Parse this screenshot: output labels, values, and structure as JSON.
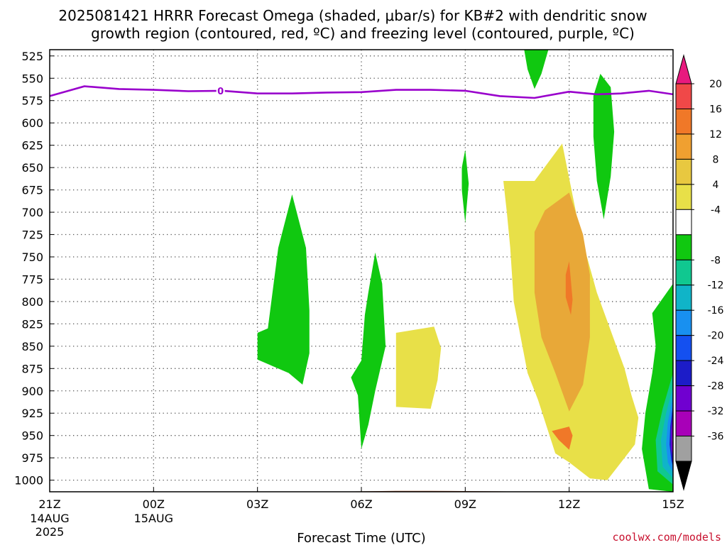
{
  "chart_data": {
    "type": "contour",
    "title_line1": "2025081421 HRRR Forecast Omega (shaded, μbar/s) for KB#2 with dendritic snow",
    "title_line2": "growth region (contoured, red, ºC) and freezing level (contoured, purple, ºC)",
    "xlabel": "Forecast Time (UTC)",
    "credit": "coolwx.com/models",
    "x_ticks": [
      {
        "label": "21Z",
        "sub1": "14AUG",
        "sub2": "2025",
        "hour": 0
      },
      {
        "label": "00Z",
        "sub1": "15AUG",
        "sub2": "",
        "hour": 3
      },
      {
        "label": "03Z",
        "sub1": "",
        "sub2": "",
        "hour": 6
      },
      {
        "label": "06Z",
        "sub1": "",
        "sub2": "",
        "hour": 9
      },
      {
        "label": "09Z",
        "sub1": "",
        "sub2": "",
        "hour": 12
      },
      {
        "label": "12Z",
        "sub1": "",
        "sub2": "",
        "hour": 15
      },
      {
        "label": "15Z",
        "sub1": "",
        "sub2": "",
        "hour": 18
      }
    ],
    "xlim_hours": [
      0,
      18
    ],
    "y_ticks": [
      525,
      550,
      575,
      600,
      625,
      650,
      675,
      700,
      725,
      750,
      775,
      800,
      825,
      850,
      875,
      900,
      925,
      950,
      975,
      1000
    ],
    "ylim_hpa": [
      518,
      1013
    ],
    "grid": true,
    "colorbar": {
      "labels": [
        "20",
        "16",
        "12",
        "8",
        "4",
        "-4",
        "-8",
        "-12",
        "-16",
        "-20",
        "-24",
        "-28",
        "-32",
        "-36"
      ],
      "bins": [
        {
          "color": "#e8197e"
        },
        {
          "color": "#f04848"
        },
        {
          "color": "#f07828"
        },
        {
          "color": "#f0a030"
        },
        {
          "color": "#e8c840"
        },
        {
          "color": "#e8e048"
        },
        {
          "color": "#ffffff"
        },
        {
          "color": "#10c810"
        },
        {
          "color": "#10c890"
        },
        {
          "color": "#10b4c8"
        },
        {
          "color": "#1890f0"
        },
        {
          "color": "#1450f0"
        },
        {
          "color": "#1c1cc8"
        },
        {
          "color": "#7000d0"
        },
        {
          "color": "#a800b8"
        },
        {
          "color": "#a0a0a0"
        },
        {
          "color": "#000000"
        }
      ]
    },
    "freezing_level": {
      "color": "#9900cc",
      "label": "0",
      "label_at": {
        "hour": 6,
        "hpa": 564
      },
      "points": [
        [
          0,
          570
        ],
        [
          1,
          559
        ],
        [
          2,
          562
        ],
        [
          3,
          563
        ],
        [
          4,
          564.5
        ],
        [
          5,
          564
        ],
        [
          6,
          567
        ],
        [
          7,
          567
        ],
        [
          8,
          566
        ],
        [
          9,
          565.5
        ],
        [
          10,
          563
        ],
        [
          11,
          563
        ],
        [
          12,
          564
        ],
        [
          13,
          570
        ],
        [
          14,
          572
        ],
        [
          15,
          565
        ],
        [
          15.8,
          568
        ],
        [
          16.5,
          567
        ],
        [
          17.3,
          564
        ],
        [
          18,
          568
        ]
      ]
    },
    "omega_regions": [
      {
        "level": "green",
        "points": [
          [
            13.7,
            518
          ],
          [
            14.4,
            518
          ],
          [
            14.2,
            545
          ],
          [
            14.0,
            562
          ],
          [
            13.8,
            540
          ]
        ]
      },
      {
        "level": "green",
        "points": [
          [
            15.7,
            570
          ],
          [
            15.9,
            545
          ],
          [
            16.2,
            560
          ],
          [
            16.3,
            610
          ],
          [
            16.2,
            660
          ],
          [
            16.0,
            708
          ],
          [
            15.8,
            665
          ],
          [
            15.7,
            615
          ]
        ]
      },
      {
        "level": "green",
        "points": [
          [
            11.9,
            650
          ],
          [
            12.0,
            630
          ],
          [
            12.1,
            668
          ],
          [
            12.0,
            712
          ],
          [
            11.9,
            675
          ]
        ]
      },
      {
        "level": "green",
        "points": [
          [
            6.0,
            835
          ],
          [
            6.3,
            830
          ],
          [
            6.6,
            740
          ],
          [
            7.0,
            680
          ],
          [
            7.4,
            740
          ],
          [
            7.5,
            810
          ],
          [
            7.5,
            858
          ],
          [
            7.3,
            893
          ],
          [
            6.9,
            880
          ],
          [
            6.0,
            865
          ]
        ]
      },
      {
        "level": "green",
        "points": [
          [
            9.0,
            866
          ],
          [
            9.1,
            815
          ],
          [
            9.2,
            790
          ],
          [
            9.4,
            745
          ],
          [
            9.6,
            780
          ],
          [
            9.7,
            850
          ],
          [
            9.4,
            900
          ],
          [
            9.2,
            938
          ],
          [
            9.0,
            965
          ],
          [
            8.9,
            905
          ],
          [
            8.7,
            885
          ]
        ]
      },
      {
        "level": "yellow",
        "points": [
          [
            10.0,
            835
          ],
          [
            11.1,
            828
          ],
          [
            11.3,
            852
          ],
          [
            11.2,
            888
          ],
          [
            11.0,
            920
          ],
          [
            10.0,
            918
          ]
        ]
      },
      {
        "level": "yellow",
        "points": [
          [
            13.1,
            665
          ],
          [
            14.0,
            665
          ],
          [
            14.8,
            623
          ],
          [
            15.3,
            720
          ],
          [
            15.8,
            790
          ],
          [
            16.6,
            875
          ],
          [
            16.8,
            905
          ],
          [
            17.0,
            930
          ],
          [
            16.9,
            960
          ],
          [
            16.4,
            985
          ],
          [
            16.1,
            1000
          ],
          [
            15.6,
            998
          ],
          [
            15.0,
            980
          ],
          [
            14.6,
            970
          ],
          [
            14.1,
            910
          ],
          [
            13.8,
            880
          ],
          [
            13.6,
            840
          ],
          [
            13.4,
            800
          ],
          [
            13.3,
            740
          ],
          [
            13.2,
            700
          ]
        ]
      },
      {
        "level": "orange",
        "points": [
          [
            14.0,
            722
          ],
          [
            14.3,
            698
          ],
          [
            15.0,
            678
          ],
          [
            15.4,
            725
          ],
          [
            15.6,
            770
          ],
          [
            15.6,
            840
          ],
          [
            15.4,
            893
          ],
          [
            15.0,
            923
          ],
          [
            14.6,
            880
          ],
          [
            14.2,
            840
          ],
          [
            14.0,
            790
          ]
        ]
      },
      {
        "level": "darkorange",
        "points": [
          [
            14.9,
            770
          ],
          [
            15.0,
            755
          ],
          [
            15.1,
            798
          ],
          [
            15.05,
            815
          ],
          [
            14.9,
            795
          ]
        ]
      },
      {
        "level": "darkorange",
        "points": [
          [
            14.5,
            945
          ],
          [
            15.0,
            940
          ],
          [
            15.1,
            950
          ],
          [
            15.0,
            966
          ],
          [
            14.7,
            955
          ]
        ]
      },
      {
        "level": "green",
        "points": [
          [
            18.0,
            780
          ],
          [
            17.4,
            813
          ],
          [
            17.5,
            850
          ],
          [
            17.4,
            880
          ],
          [
            17.2,
            925
          ],
          [
            17.1,
            965
          ],
          [
            17.3,
            1010
          ],
          [
            18.0,
            1013
          ]
        ]
      },
      {
        "level": "teal",
        "points": [
          [
            18.0,
            880
          ],
          [
            17.7,
            920
          ],
          [
            17.5,
            955
          ],
          [
            17.55,
            990
          ],
          [
            18.0,
            1005
          ]
        ]
      },
      {
        "level": "lightblue",
        "points": [
          [
            18.0,
            895
          ],
          [
            17.8,
            925
          ],
          [
            17.65,
            955
          ],
          [
            17.7,
            985
          ],
          [
            18.0,
            998
          ]
        ]
      },
      {
        "level": "blue",
        "points": [
          [
            18.0,
            905
          ],
          [
            17.85,
            935
          ],
          [
            17.8,
            960
          ],
          [
            17.85,
            980
          ],
          [
            18.0,
            992
          ]
        ]
      },
      {
        "level": "darkblue",
        "points": [
          [
            18.0,
            915
          ],
          [
            17.92,
            940
          ],
          [
            17.9,
            960
          ],
          [
            17.95,
            978
          ],
          [
            18.0,
            985
          ]
        ]
      },
      {
        "level": "purple",
        "points": [
          [
            18.0,
            925
          ],
          [
            17.95,
            945
          ],
          [
            17.95,
            965
          ],
          [
            18.0,
            975
          ]
        ]
      },
      {
        "level": "gray",
        "points": [
          [
            18.0,
            940
          ],
          [
            17.98,
            955
          ],
          [
            18.0,
            962
          ]
        ]
      }
    ],
    "level_colors": {
      "green": "#10c810",
      "yellow": "#e8e048",
      "orange": "#e8a838",
      "darkorange": "#f07828",
      "teal": "#10c890",
      "lightblue": "#10b4c8",
      "blue": "#1890f0",
      "darkblue": "#1c1cc8",
      "purple": "#8000c8",
      "gray": "#a0a0a0"
    },
    "terrain": {
      "color": "#a0522d",
      "points": [
        [
          0,
          1013
        ],
        [
          3,
          1013
        ],
        [
          4,
          1013.5
        ],
        [
          5,
          1013.5
        ],
        [
          8,
          1013
        ],
        [
          10,
          1012
        ],
        [
          11,
          1012
        ],
        [
          13,
          1012.5
        ],
        [
          14,
          1013
        ],
        [
          18,
          1013
        ]
      ]
    }
  }
}
